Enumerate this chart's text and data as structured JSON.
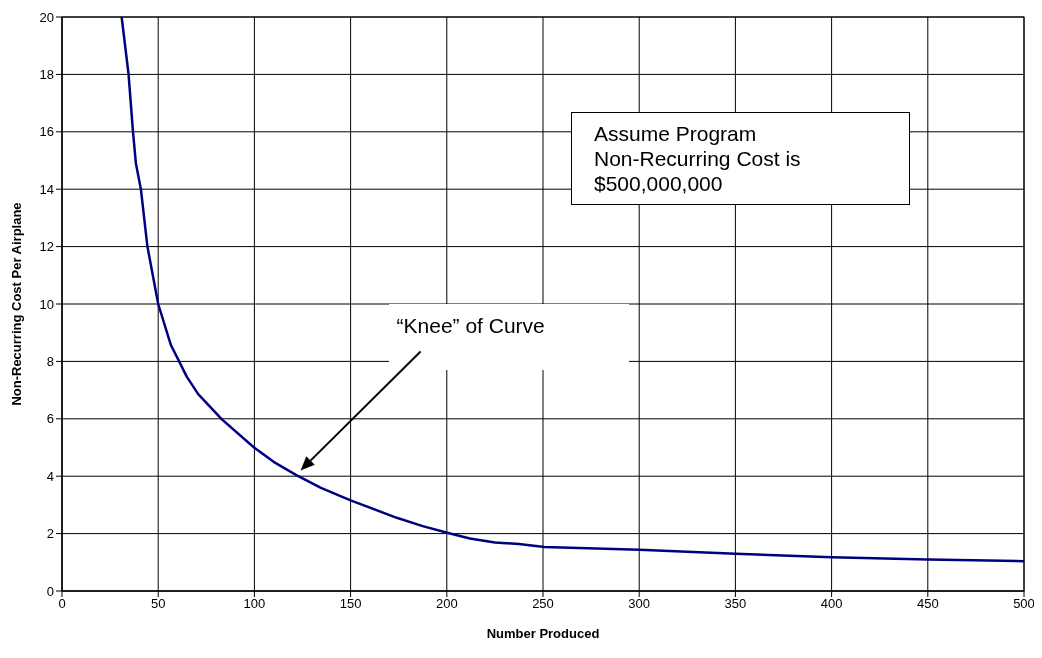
{
  "chart_data": {
    "type": "line",
    "xlabel": "Number Produced",
    "ylabel": "Non-Recurring Cost Per Airplane",
    "x": [
      31,
      34.6,
      36.9,
      38.4,
      41,
      44.4,
      50,
      56.6,
      64.9,
      70.8,
      83.1,
      99.8,
      110,
      121.8,
      134.6,
      150,
      174,
      187.5,
      200.7,
      212,
      225,
      237.5,
      250.7,
      300,
      350,
      400,
      450,
      500
    ],
    "series": [
      {
        "color": "#000080",
        "values": [
          20,
          18,
          16,
          14.9,
          14,
          12,
          10,
          8.57,
          7.46,
          6.86,
          5.98,
          5.0,
          4.5,
          4.04,
          3.59,
          3.16,
          2.55,
          2.26,
          2.02,
          1.83,
          1.69,
          1.64,
          1.53,
          1.44,
          1.3,
          1.18,
          1.1,
          1.04
        ]
      }
    ],
    "xlim": [
      0,
      500
    ],
    "xticks": [
      0,
      50,
      100,
      150,
      200,
      250,
      300,
      350,
      400,
      450,
      500
    ],
    "ylim": [
      0,
      20
    ],
    "yticks": [
      0,
      2,
      4,
      6,
      8,
      10,
      12,
      14,
      16,
      18,
      20
    ],
    "grid": true,
    "marker": "none",
    "line_style": "solid",
    "annotations": [
      "Assume Program Non-Recurring Cost is $500,000,000",
      "“Knee” of Curve"
    ]
  }
}
